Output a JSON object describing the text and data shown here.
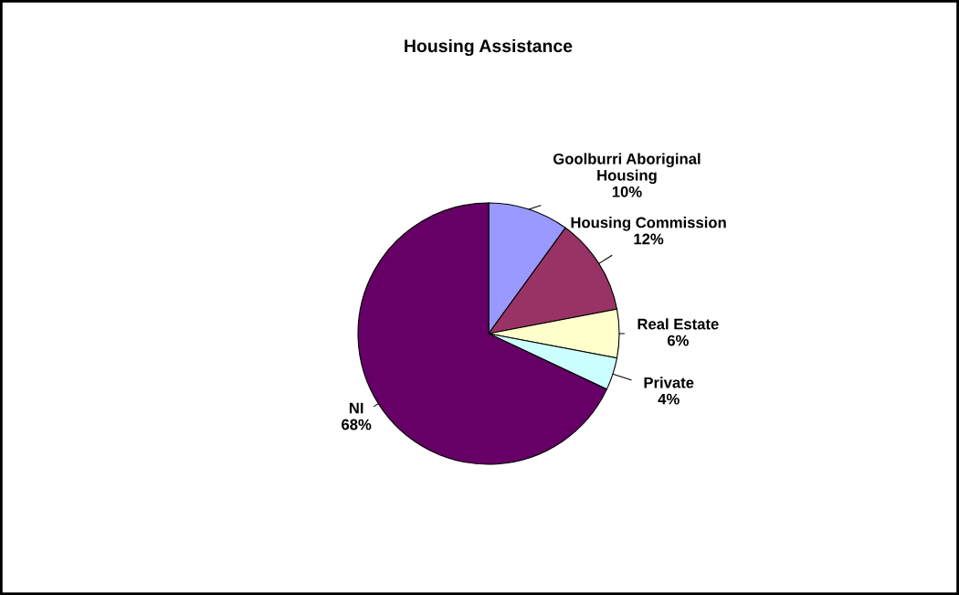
{
  "chart_data": {
    "type": "pie",
    "title": "Housing Assistance",
    "categories": [
      "Goolburri Aboriginal Housing",
      "Housing Commission",
      "Real Estate",
      "Private",
      "NI"
    ],
    "values": [
      10,
      12,
      6,
      4,
      68
    ],
    "value_labels": [
      "10%",
      "12%",
      "6%",
      "4%",
      "68%"
    ],
    "colors": [
      "#9999ff",
      "#993366",
      "#ffffcc",
      "#ccffff",
      "#660066"
    ]
  }
}
